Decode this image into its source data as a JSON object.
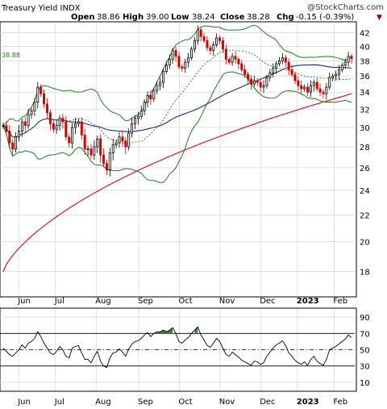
{
  "header": {
    "title": "Treasury Yield INDX",
    "brand": "@StockCharts.com",
    "open_label": "Open",
    "open_value": "38.86",
    "high_label": "High",
    "high_value": "39.00",
    "low_label": "Low",
    "low_value": "38.24",
    "close_label": "Close",
    "close_value": "38.28",
    "chg_label": "Chg",
    "chg_value": "-0.15 (-0.39%)",
    "chg_marker": "▼",
    "upper_band_last": "38.88"
  },
  "colors": {
    "up_candle": "#000000",
    "down_candle": "#cc0000",
    "bollinger": "#1f7a1f",
    "bollinger_mid": "#1f7a1f",
    "ma50": "#1a2a8c",
    "ma200": "#e0001c",
    "rsi": "#000000",
    "rsi_fill": "#3f7f3f",
    "grid": "#cccccc"
  },
  "chart_data": [
    {
      "type": "candlestick",
      "title": "Treasury Yield INDX",
      "xlabel": "",
      "ylabel": "",
      "x_ticks": [
        "Jun",
        "Jul",
        "Aug",
        "Sep",
        "Oct",
        "Nov",
        "Dec",
        "2023",
        "Feb"
      ],
      "y_ticks": [
        18,
        20,
        22,
        24,
        26,
        28,
        30,
        32,
        34,
        36,
        38,
        40,
        42
      ],
      "ylim": [
        16.5,
        43.5
      ],
      "y_scale": "log",
      "grid": true,
      "overlays": [
        "Bollinger Bands (upper, middle, lower)",
        "50-day moving average",
        "200-day moving average"
      ],
      "closes": [
        30.2,
        29.6,
        28.4,
        27.8,
        29.0,
        29.6,
        30.6,
        30.2,
        31.4,
        31.8,
        32.8,
        34.6,
        33.8,
        32.6,
        31.6,
        30.4,
        29.8,
        30.2,
        31.0,
        30.6,
        29.0,
        28.4,
        30.0,
        30.4,
        30.6,
        29.2,
        27.8,
        27.8,
        27.2,
        28.0,
        28.8,
        27.2,
        26.4,
        25.8,
        27.4,
        28.2,
        28.4,
        29.0,
        28.6,
        28.0,
        29.4,
        30.4,
        31.0,
        31.2,
        31.8,
        32.8,
        33.6,
        33.2,
        34.2,
        34.8,
        35.2,
        36.6,
        37.4,
        38.2,
        39.4,
        38.6,
        37.2,
        37.0,
        37.8,
        38.4,
        39.6,
        40.8,
        42.4,
        41.4,
        40.8,
        39.8,
        39.4,
        40.2,
        41.2,
        40.8,
        39.6,
        38.2,
        37.8,
        38.6,
        38.2,
        37.6,
        36.8,
        36.2,
        35.6,
        35.0,
        35.4,
        35.2,
        34.6,
        34.8,
        35.8,
        36.4,
        37.0,
        37.6,
        38.0,
        38.4,
        37.8,
        36.8,
        36.2,
        35.4,
        34.8,
        34.4,
        34.6,
        34.0,
        34.8,
        35.2,
        34.4,
        34.0,
        33.8,
        34.6,
        35.8,
        36.0,
        36.2,
        36.8,
        37.4,
        37.8,
        38.6,
        38.28
      ],
      "upper_band_last": 38.88,
      "bollinger_upper_last": 38.88,
      "bollinger_mid_last": 36.3,
      "bollinger_lower_last": 33.4,
      "ma50_last": 36.0,
      "ma200_last": 33.8
    },
    {
      "type": "line",
      "title": "",
      "xlabel": "",
      "ylabel": "",
      "x_ticks": [
        "Jun",
        "Jul",
        "Aug",
        "Sep",
        "Oct",
        "Nov",
        "Dec",
        "2023",
        "Feb"
      ],
      "y_ticks": [
        10,
        30,
        50,
        70,
        90
      ],
      "ylim": [
        0,
        100
      ],
      "reference_lines": [
        30,
        50,
        70
      ],
      "series": [
        {
          "values": [
            52,
            48,
            44,
            42,
            46,
            50,
            56,
            52,
            58,
            60,
            64,
            72,
            66,
            58,
            52,
            46,
            44,
            48,
            54,
            50,
            42,
            40,
            52,
            54,
            55,
            46,
            38,
            38,
            34,
            42,
            48,
            36,
            30,
            28,
            40,
            46,
            47,
            51,
            47,
            42,
            51,
            57,
            60,
            61,
            64,
            68,
            71,
            66,
            70,
            72,
            72,
            74,
            72,
            74,
            77,
            70,
            60,
            58,
            62,
            65,
            70,
            74,
            78,
            68,
            62,
            55,
            53,
            58,
            64,
            60,
            52,
            44,
            42,
            47,
            44,
            41,
            37,
            35,
            33,
            31,
            36,
            35,
            32,
            34,
            42,
            47,
            52,
            56,
            58,
            61,
            55,
            46,
            42,
            37,
            34,
            32,
            35,
            31,
            38,
            42,
            36,
            33,
            31,
            38,
            50,
            52,
            54,
            57,
            60,
            63,
            68,
            65
          ]
        }
      ]
    }
  ]
}
